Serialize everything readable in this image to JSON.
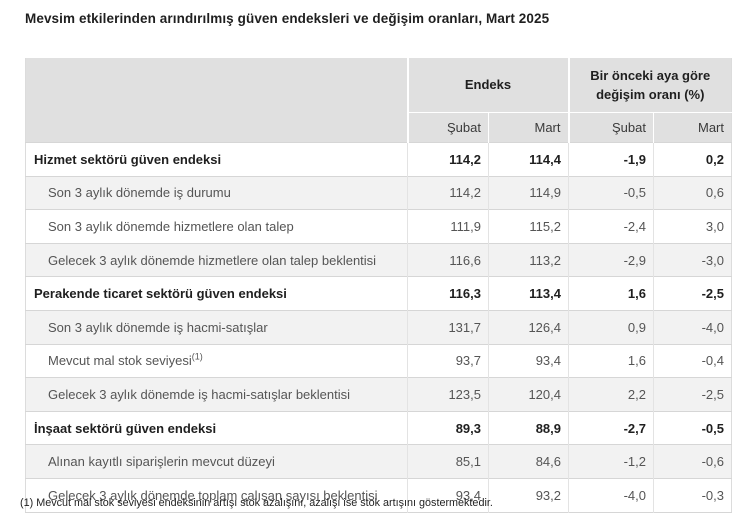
{
  "page": {
    "title": "Mevsim etkilerinden arındırılmış güven endeksleri ve değişim oranları, Mart 2025",
    "footnote": "(1) Mevcut mal stok seviyesi endeksinin artışı stok azalışını, azalışı ise stok artışını göstermektedir."
  },
  "table": {
    "group_headers": [
      {
        "label": "Endeks"
      },
      {
        "label": "Bir önceki aya göre değişim oranı (%)"
      }
    ],
    "sub_headers": [
      "Şubat",
      "Mart",
      "Şubat",
      "Mart"
    ],
    "rows": [
      {
        "label": "Hizmet sektörü güven endeksi",
        "bold": true,
        "values": [
          "114,2",
          "114,4",
          "-1,9",
          "0,2"
        ]
      },
      {
        "label": "Son 3 aylık dönemde iş durumu",
        "bold": false,
        "values": [
          "114,2",
          "114,9",
          "-0,5",
          "0,6"
        ]
      },
      {
        "label": "Son 3 aylık dönemde hizmetlere olan talep",
        "bold": false,
        "values": [
          "111,9",
          "115,2",
          "-2,4",
          "3,0"
        ]
      },
      {
        "label": "Gelecek 3 aylık dönemde hizmetlere olan talep beklentisi",
        "bold": false,
        "values": [
          "116,6",
          "113,2",
          "-2,9",
          "-3,0"
        ]
      },
      {
        "label": "Perakende ticaret sektörü güven endeksi",
        "bold": true,
        "values": [
          "116,3",
          "113,4",
          "1,6",
          "-2,5"
        ]
      },
      {
        "label": "Son 3 aylık dönemde iş hacmi-satışlar",
        "bold": false,
        "values": [
          "131,7",
          "126,4",
          "0,9",
          "-4,0"
        ]
      },
      {
        "label": "Mevcut mal stok seviyesi",
        "sup": "(1)",
        "bold": false,
        "values": [
          "93,7",
          "93,4",
          "1,6",
          "-0,4"
        ]
      },
      {
        "label": "Gelecek 3 aylık dönemde iş hacmi-satışlar beklentisi",
        "bold": false,
        "values": [
          "123,5",
          "120,4",
          "2,2",
          "-2,5"
        ]
      },
      {
        "label": "İnşaat sektörü güven endeksi",
        "bold": true,
        "values": [
          "89,3",
          "88,9",
          "-2,7",
          "-0,5"
        ]
      },
      {
        "label": "Alınan kayıtlı siparişlerin mevcut düzeyi",
        "bold": false,
        "values": [
          "85,1",
          "84,6",
          "-1,2",
          "-0,6"
        ]
      },
      {
        "label": "Gelecek 3 aylık dönemde toplam çalışan sayısı beklentisi",
        "bold": false,
        "values": [
          "93,4",
          "93,2",
          "-4,0",
          "-0,3"
        ]
      }
    ]
  },
  "colors": {
    "header_bg": "#e0e0e0",
    "stripe_bg": "#f2f2f2",
    "row_border": "#d6d6d6",
    "text_dark": "#1f1f1f",
    "text_gray": "#555555"
  }
}
